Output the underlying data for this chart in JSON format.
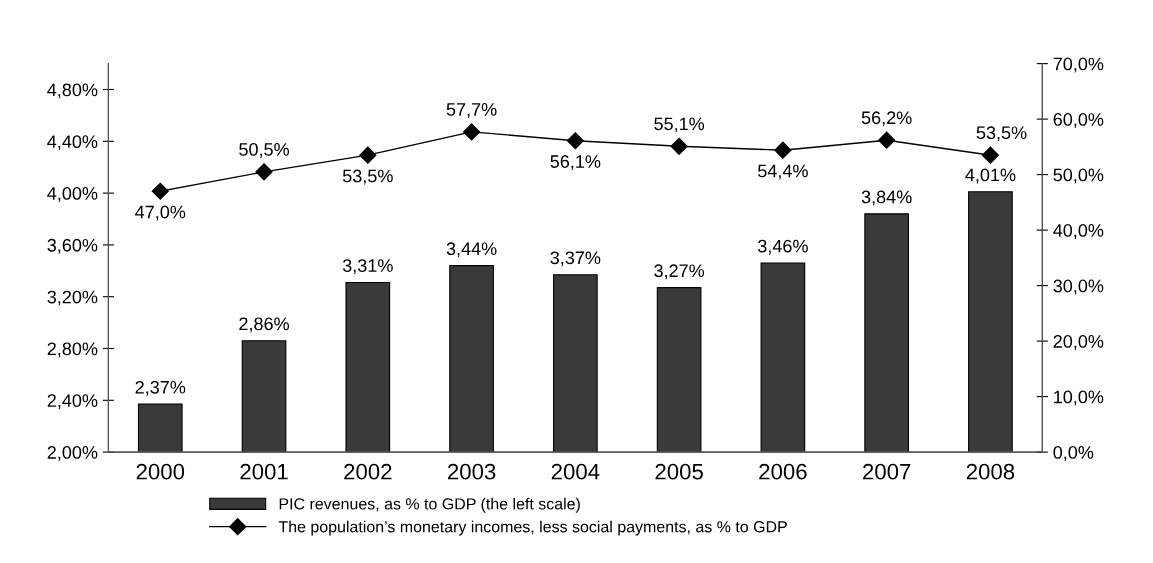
{
  "chart_data": {
    "type": "bar",
    "categories": [
      "2000",
      "2001",
      "2002",
      "2003",
      "2004",
      "2005",
      "2006",
      "2007",
      "2008"
    ],
    "series": [
      {
        "name": "PIC revenues, as % to GDP (the left scale)",
        "color": "#3a3a3a",
        "values": [
          2.37,
          2.86,
          3.31,
          3.44,
          3.37,
          3.27,
          3.46,
          3.84,
          4.01
        ],
        "value_labels": [
          "2,37%",
          "2,86%",
          "3,31%",
          "3,44%",
          "3,37%",
          "3,27%",
          "3,46%",
          "3,84%",
          "4,01%"
        ]
      },
      {
        "name": "The population’s monetary incomes, less social payments, as % to GDP",
        "type": "line",
        "axis": "y2",
        "color": "#000000",
        "marker": "diamond",
        "values": [
          47.0,
          50.5,
          53.5,
          57.7,
          56.1,
          55.1,
          54.4,
          56.2,
          53.5
        ],
        "value_labels": [
          "47,0%",
          "50,5%",
          "53,5%",
          "57,7%",
          "56,1%",
          "55,1%",
          "54,4%",
          "56,2%",
          "53,5%"
        ]
      }
    ],
    "ylim": [
      2.0,
      5.0
    ],
    "yticks": [
      {
        "value": 2.0,
        "label": "2,00%"
      },
      {
        "value": 2.4,
        "label": "2,40%"
      },
      {
        "value": 2.8,
        "label": "2,80%"
      },
      {
        "value": 3.2,
        "label": "3,20%"
      },
      {
        "value": 3.6,
        "label": "3,60%"
      },
      {
        "value": 4.0,
        "label": "4,00%"
      },
      {
        "value": 4.4,
        "label": "4,40%"
      },
      {
        "value": 4.8,
        "label": "4,80%"
      }
    ],
    "y2lim": [
      0,
      70
    ],
    "y2ticks": [
      {
        "value": 0,
        "label": "0,0%"
      },
      {
        "value": 10,
        "label": "10,0%"
      },
      {
        "value": 20,
        "label": "20,0%"
      },
      {
        "value": 30,
        "label": "30,0%"
      },
      {
        "value": 40,
        "label": "40,0%"
      },
      {
        "value": 50,
        "label": "50,0%"
      },
      {
        "value": 60,
        "label": "60,0%"
      },
      {
        "value": 70,
        "label": "70,0%"
      }
    ],
    "grid": false,
    "legend": "bottom"
  }
}
